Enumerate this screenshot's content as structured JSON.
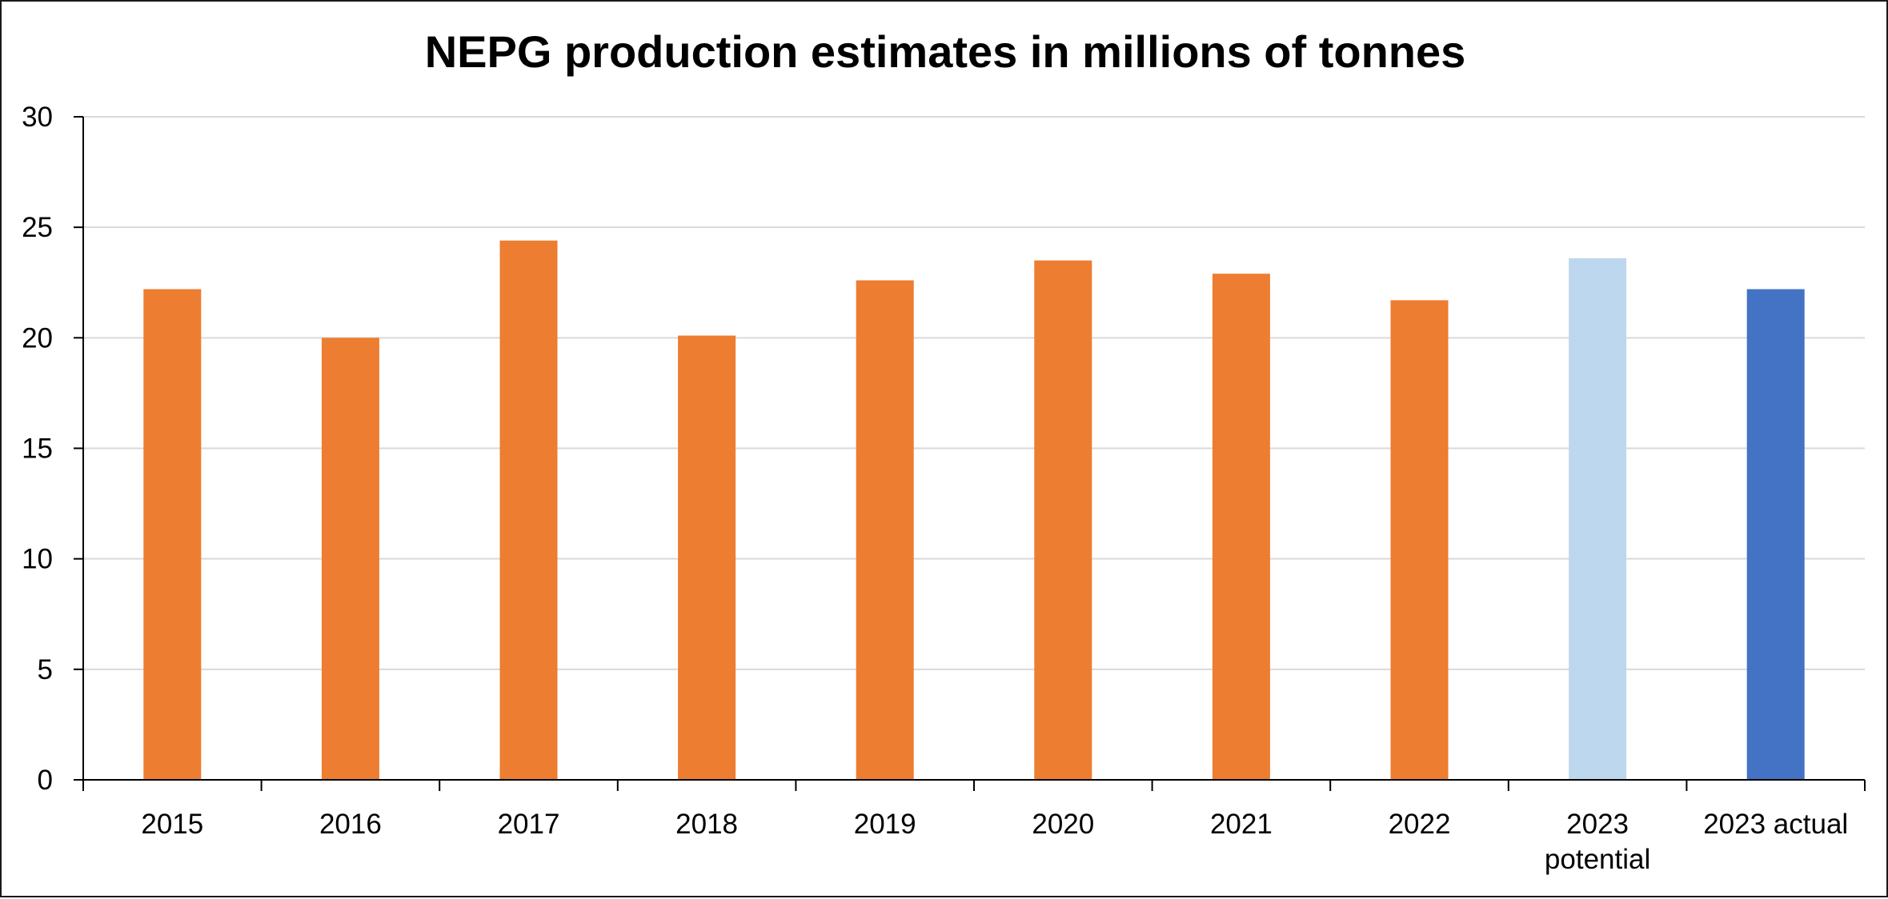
{
  "chart_data": {
    "type": "bar",
    "title": "NEPG production estimates in millions of tonnes",
    "xlabel": "",
    "ylabel": "",
    "categories": [
      "2015",
      "2016",
      "2017",
      "2018",
      "2019",
      "2020",
      "2021",
      "2022",
      "2023 potential",
      "2023 actual"
    ],
    "category_lines": [
      [
        "2015"
      ],
      [
        "2016"
      ],
      [
        "2017"
      ],
      [
        "2018"
      ],
      [
        "2019"
      ],
      [
        "2020"
      ],
      [
        "2021"
      ],
      [
        "2022"
      ],
      [
        "2023",
        "potential"
      ],
      [
        "2023 actual"
      ]
    ],
    "values": [
      22.2,
      20.0,
      24.4,
      20.1,
      22.6,
      23.5,
      22.9,
      21.7,
      23.6,
      22.2
    ],
    "bar_colors": [
      "#ED7D31",
      "#ED7D31",
      "#ED7D31",
      "#ED7D31",
      "#ED7D31",
      "#ED7D31",
      "#ED7D31",
      "#ED7D31",
      "#BDD7EE",
      "#4472C4"
    ],
    "ylim": [
      0,
      30
    ],
    "yticks": [
      0,
      5,
      10,
      15,
      20,
      25,
      30
    ],
    "grid": true,
    "legend": "none"
  }
}
